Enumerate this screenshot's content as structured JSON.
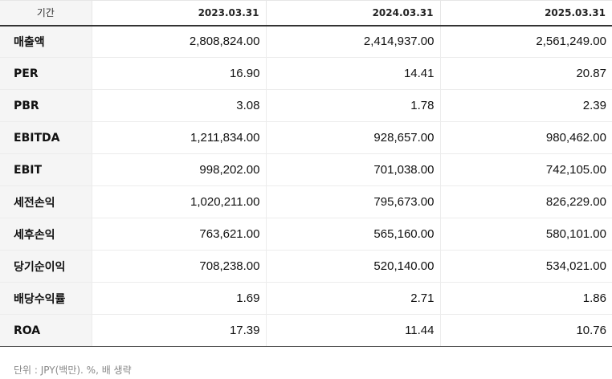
{
  "table": {
    "header_label": "기간",
    "periods": [
      "2023.03.31",
      "2024.03.31",
      "2025.03.31"
    ],
    "rows": [
      {
        "label": "매출액",
        "values": [
          "2,808,824.00",
          "2,414,937.00",
          "2,561,249.00"
        ]
      },
      {
        "label": "PER",
        "values": [
          "16.90",
          "14.41",
          "20.87"
        ]
      },
      {
        "label": "PBR",
        "values": [
          "3.08",
          "1.78",
          "2.39"
        ]
      },
      {
        "label": "EBITDA",
        "values": [
          "1,211,834.00",
          "928,657.00",
          "980,462.00"
        ]
      },
      {
        "label": "EBIT",
        "values": [
          "998,202.00",
          "701,038.00",
          "742,105.00"
        ]
      },
      {
        "label": "세전손익",
        "values": [
          "1,020,211.00",
          "795,673.00",
          "826,229.00"
        ]
      },
      {
        "label": "세후손익",
        "values": [
          "763,621.00",
          "565,160.00",
          "580,101.00"
        ]
      },
      {
        "label": "당기순이익",
        "values": [
          "708,238.00",
          "520,140.00",
          "534,021.00"
        ]
      },
      {
        "label": "배당수익률",
        "values": [
          "1.69",
          "2.71",
          "1.86"
        ]
      },
      {
        "label": "ROA",
        "values": [
          "17.39",
          "11.44",
          "10.76"
        ]
      }
    ]
  },
  "footnote": "단위 : JPY(백만). %, 배 생략"
}
